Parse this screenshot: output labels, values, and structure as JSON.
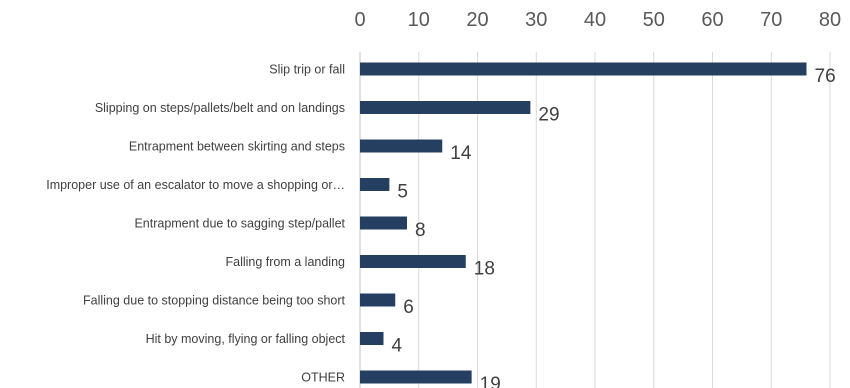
{
  "chart_data": {
    "type": "bar",
    "orientation": "horizontal",
    "categories": [
      "Slip trip or fall",
      "Slipping on steps/pallets/belt and on landings",
      "Entrapment between skirting and steps",
      "Improper use of an escalator to move a shopping or…",
      "Entrapment due to sagging step/pallet",
      "Falling from a landing",
      "Falling due to stopping distance being too short",
      "Hit by moving, flying or falling object",
      "OTHER"
    ],
    "values": [
      76,
      29,
      14,
      5,
      8,
      18,
      6,
      4,
      19
    ],
    "xlim": [
      0,
      80
    ],
    "xticks": [
      0,
      10,
      20,
      30,
      40,
      50,
      60,
      70,
      80
    ],
    "xaxis_position": "top",
    "grid": true,
    "legend": "none",
    "bar_color": "#243f60",
    "grid_color": "#d9d9d9",
    "title": "",
    "xlabel": "",
    "ylabel": ""
  }
}
